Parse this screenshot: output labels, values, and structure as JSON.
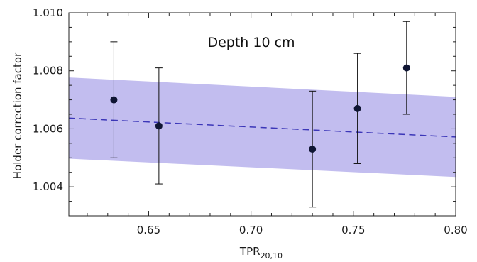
{
  "chart_data": {
    "type": "scatter",
    "title": "",
    "annotation": "Depth 10 cm",
    "xlabel": {
      "base": "TPR",
      "subscript": "20,10"
    },
    "ylabel": "Holder correction factor",
    "xlim": [
      0.611,
      0.8
    ],
    "ylim": [
      1.003,
      1.01
    ],
    "x_ticks": [
      0.65,
      0.7,
      0.75,
      0.8
    ],
    "x_tick_labels": [
      "0.65",
      "0.70",
      "0.75",
      "0.80"
    ],
    "y_ticks": [
      1.004,
      1.006,
      1.008,
      1.01
    ],
    "y_tick_labels": [
      "1.004",
      "1.006",
      "1.008",
      "1.010"
    ],
    "grid": false,
    "points": [
      {
        "x": 0.633,
        "y": 1.007,
        "err": 0.002
      },
      {
        "x": 0.655,
        "y": 1.0061,
        "err": 0.002
      },
      {
        "x": 0.73,
        "y": 1.0053,
        "err": 0.002
      },
      {
        "x": 0.752,
        "y": 1.0067,
        "err": 0.0019
      },
      {
        "x": 0.776,
        "y": 1.0081,
        "err": 0.0016
      }
    ],
    "fit_line": {
      "style": "dashed",
      "x": [
        0.611,
        0.8
      ],
      "y": [
        1.00637,
        1.00572
      ]
    },
    "band": {
      "x": [
        0.611,
        0.8
      ],
      "y_upper": [
        1.00777,
        1.0071
      ],
      "y_lower": [
        1.00497,
        1.00434
      ]
    },
    "colors": {
      "band": "#c2bdef",
      "fit_line": "#3b36b8",
      "points": "#0f1533",
      "errorbars": "#111111",
      "axes": "#222222"
    }
  }
}
